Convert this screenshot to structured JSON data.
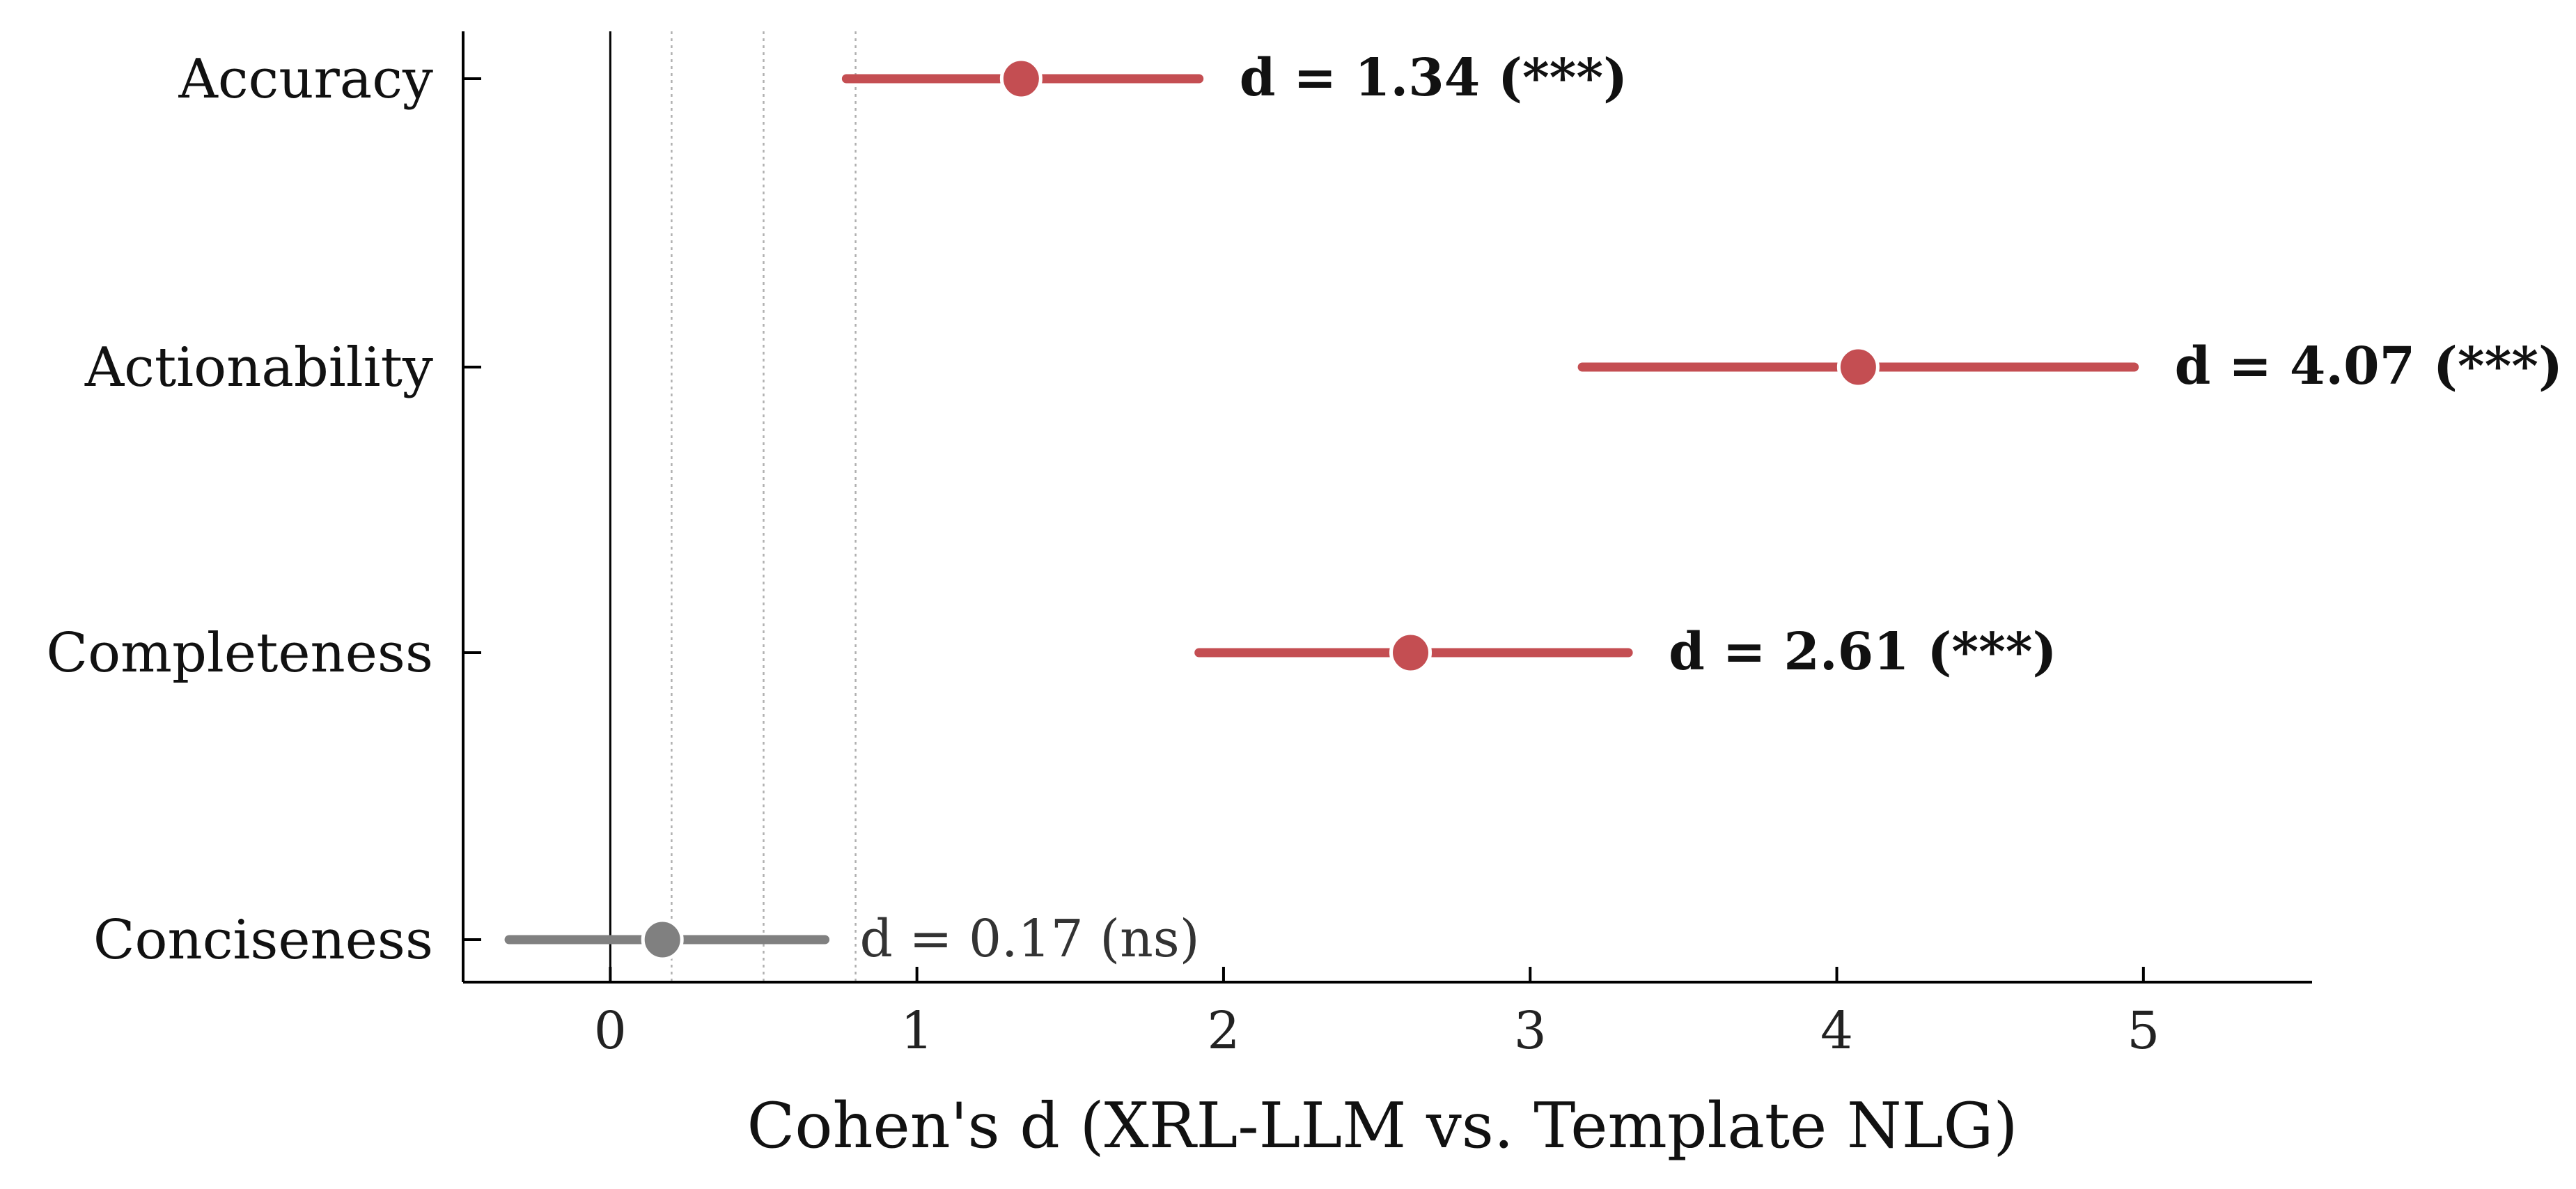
{
  "chart_data": {
    "type": "forest",
    "title": "",
    "xlabel": "Cohen's d (XRL-LLM vs. Template NLG)",
    "ylabel": "",
    "xlim": [
      -0.48,
      5.55
    ],
    "xticks": [
      0,
      1,
      2,
      3,
      4,
      5
    ],
    "reference_lines": [
      {
        "x": 0,
        "style": "solid"
      },
      {
        "x": 0.2,
        "style": "dotted"
      },
      {
        "x": 0.5,
        "style": "dotted"
      },
      {
        "x": 0.8,
        "style": "dotted"
      }
    ],
    "grid": false,
    "items": [
      {
        "category": "Accuracy",
        "d": 1.34,
        "ci_low": 0.77,
        "ci_high": 1.92,
        "label": "d = 1.34 (***)",
        "significant": true
      },
      {
        "category": "Actionability",
        "d": 4.07,
        "ci_low": 3.17,
        "ci_high": 4.97,
        "label": "d = 4.07 (***)",
        "significant": true
      },
      {
        "category": "Completeness",
        "d": 2.61,
        "ci_low": 1.92,
        "ci_high": 3.32,
        "label": "d = 2.61 (***)",
        "significant": true
      },
      {
        "category": "Conciseness",
        "d": 0.17,
        "ci_low": -0.33,
        "ci_high": 0.7,
        "label": "d = 0.17 (ns)",
        "significant": false
      }
    ],
    "colors": {
      "significant": "#c44e52",
      "not_significant": "#808080"
    }
  }
}
